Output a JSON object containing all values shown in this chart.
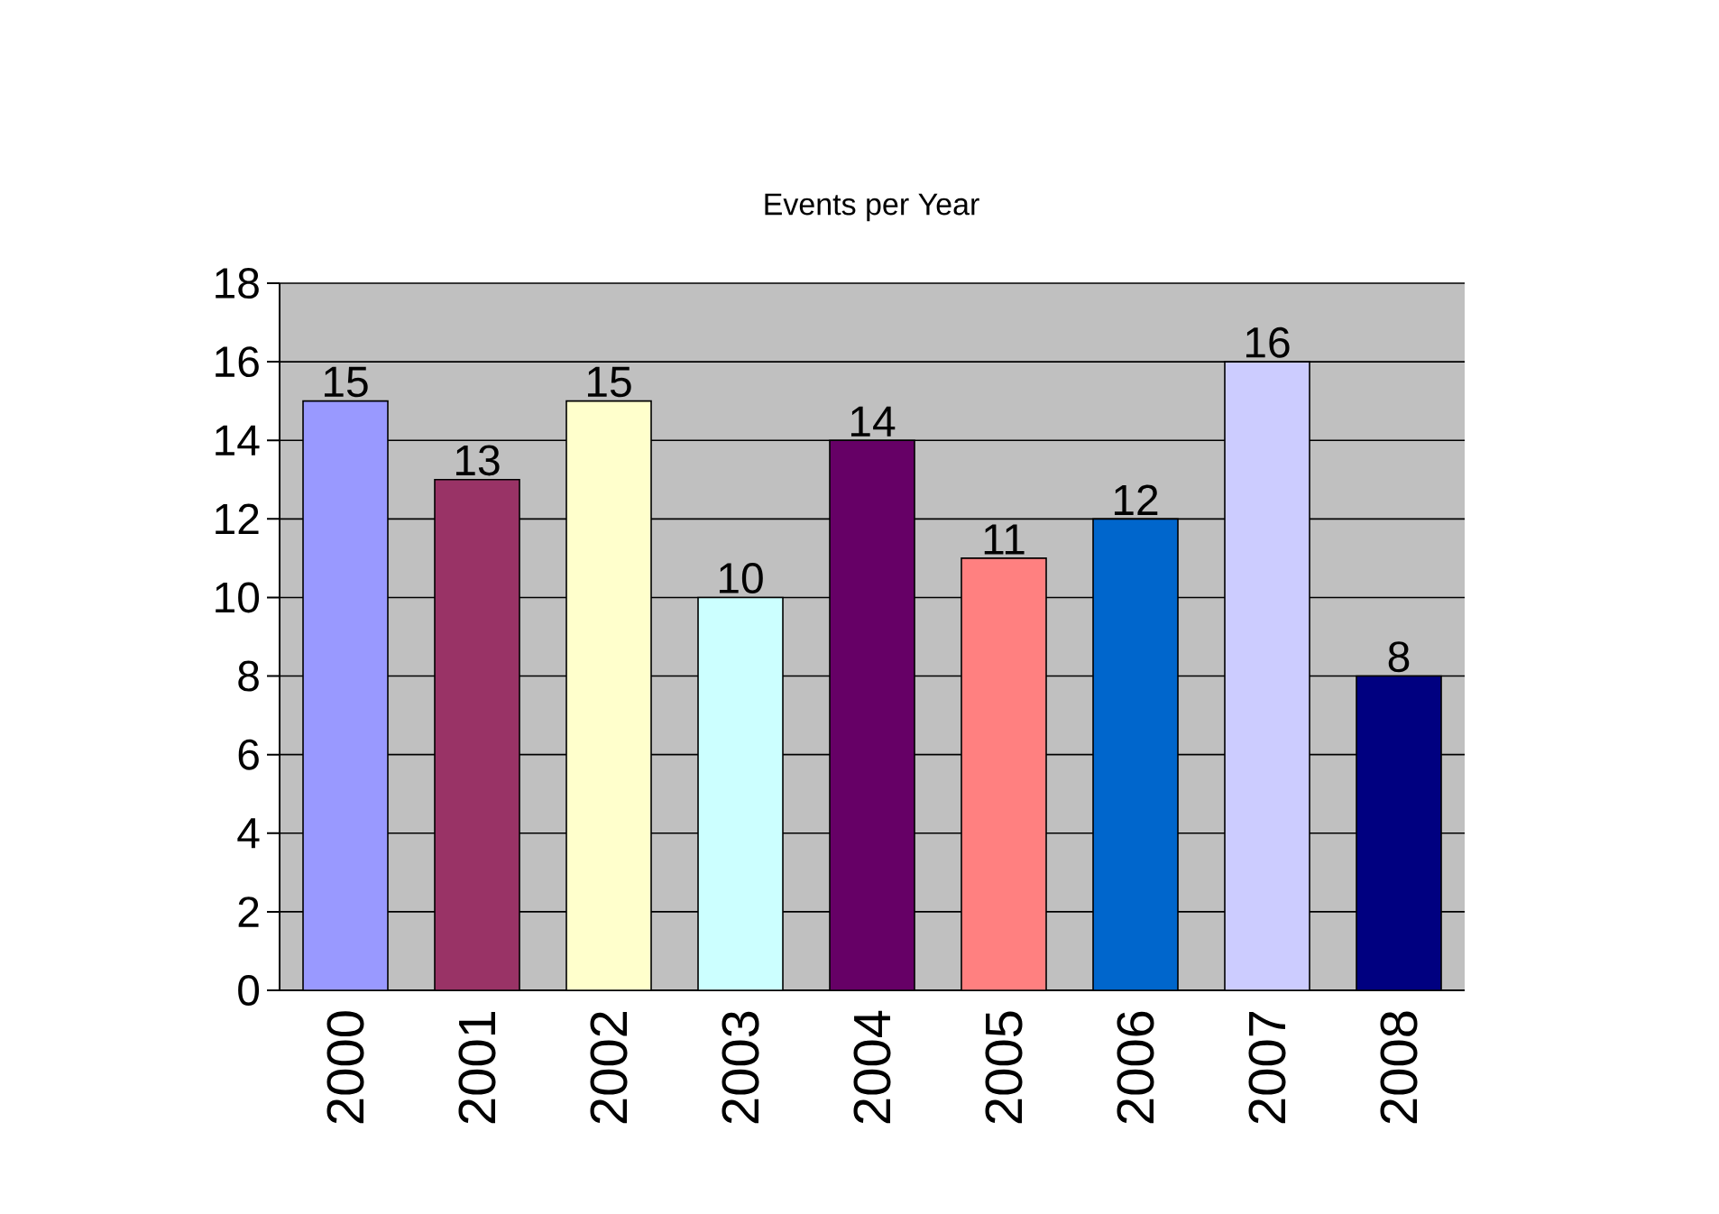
{
  "chart_data": {
    "type": "bar",
    "title": "Events per Year",
    "categories": [
      "2000",
      "2001",
      "2002",
      "2003",
      "2004",
      "2005",
      "2006",
      "2007",
      "2008"
    ],
    "values": [
      15,
      13,
      15,
      10,
      14,
      11,
      12,
      16,
      8
    ],
    "colors": [
      "#9999ff",
      "#993366",
      "#ffffcc",
      "#ccffff",
      "#660066",
      "#ff8080",
      "#0066cc",
      "#ccccff",
      "#000080"
    ],
    "ylim": [
      0,
      18
    ],
    "yticks": [
      0,
      2,
      4,
      6,
      8,
      10,
      12,
      14,
      16,
      18
    ],
    "grid": "y",
    "data_labels": true
  }
}
